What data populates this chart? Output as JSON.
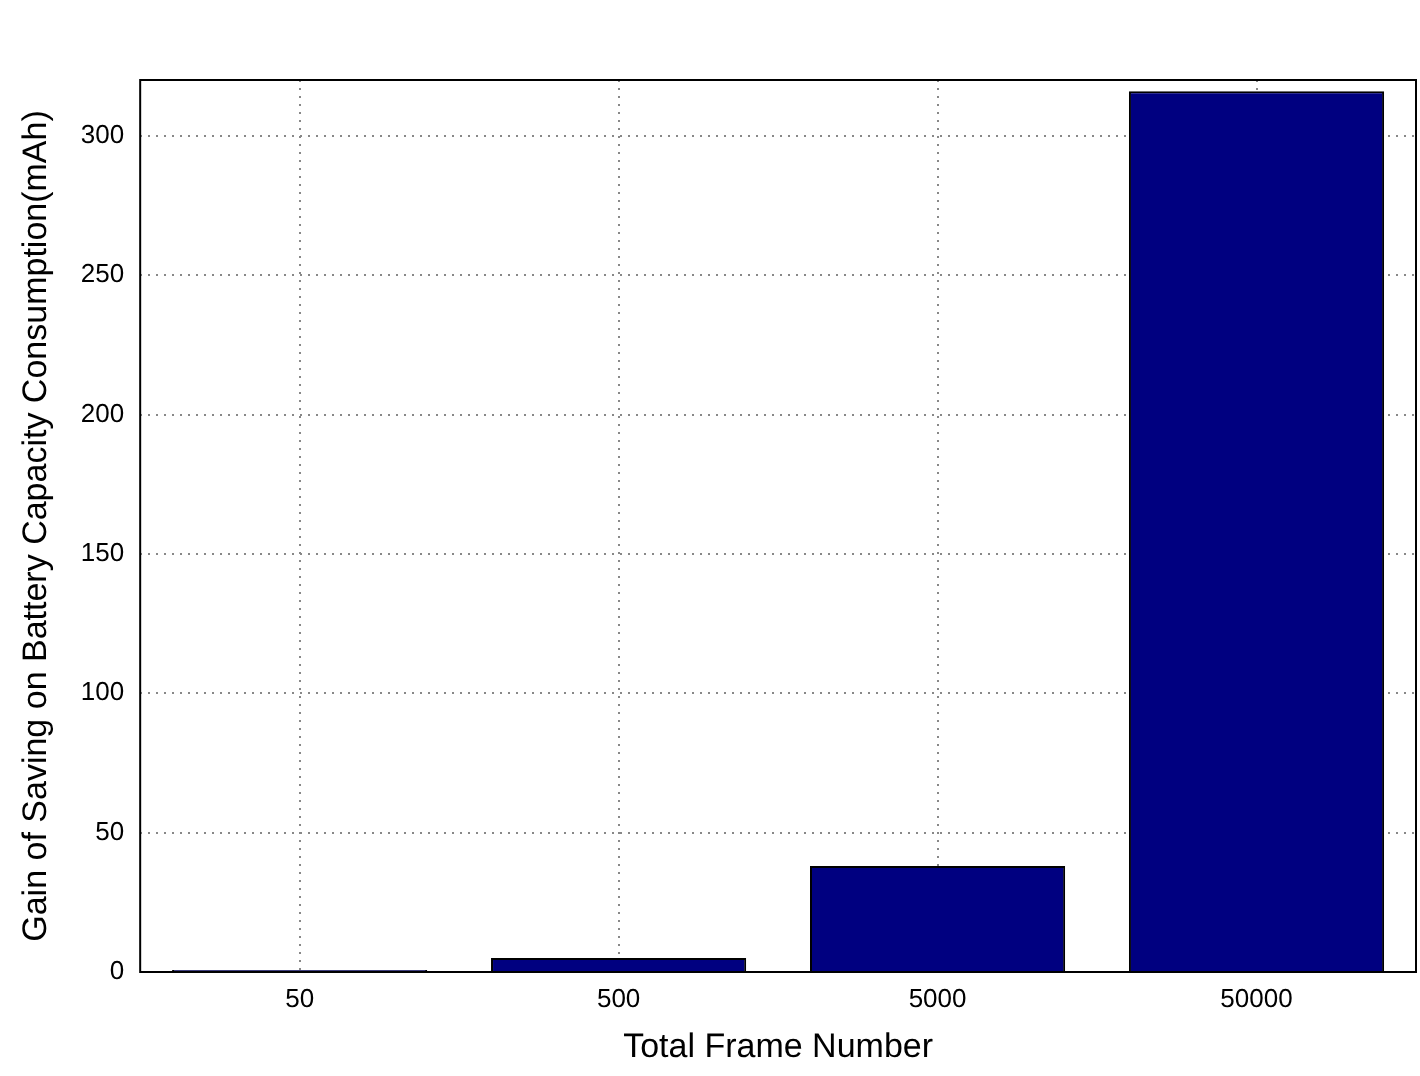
{
  "chart_data": {
    "type": "bar",
    "xlabel": "Total Frame Number",
    "ylabel": "Gain of Saving on Battery Capacity Consumption(mAh)",
    "categories": [
      "50",
      "500",
      "5000",
      "50000"
    ],
    "values": [
      0.7,
      5,
      38,
      316
    ],
    "color": "#000080",
    "ylim": [
      0,
      320
    ],
    "yticks": [
      0,
      50,
      100,
      150,
      200,
      250,
      300
    ],
    "grid": true,
    "legend": false
  }
}
